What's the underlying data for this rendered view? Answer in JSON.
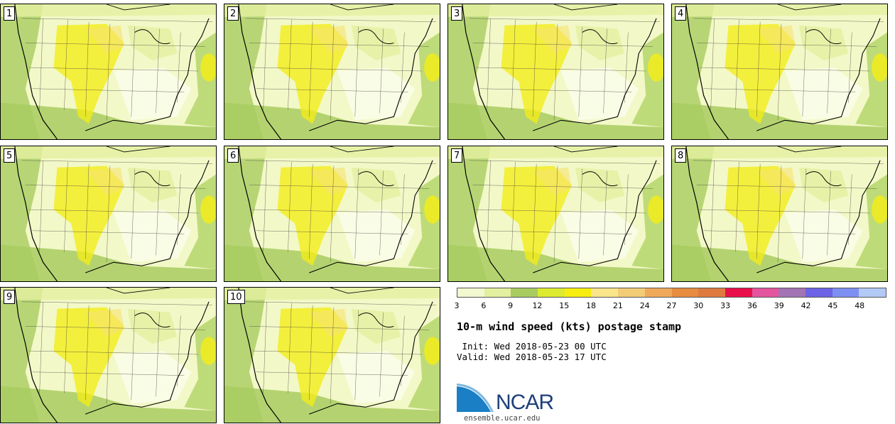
{
  "members": [
    "1",
    "2",
    "3",
    "4",
    "5",
    "6",
    "7",
    "8",
    "9",
    "10"
  ],
  "colors": {
    "land_light": "#f3f8c8",
    "green": "#a8cc60",
    "light_yellow": "#e3f0a0",
    "yellow": "#f2ec1a",
    "orange_light": "#f7e270",
    "ocean_green": "#b8d770",
    "border": "#000000",
    "state_line": "#333333"
  },
  "colorbar": {
    "colors": [
      "#f2f8cf",
      "#e3f0a0",
      "#a8cc60",
      "#dcea30",
      "#f7ee10",
      "#f9e58a",
      "#f3cc76",
      "#f0a85a",
      "#e88c40",
      "#de7a3f",
      "#e8104a",
      "#e3559e",
      "#a274b4",
      "#6c63e6",
      "#7e8ff2",
      "#b3caf7"
    ],
    "ticks": [
      "3",
      "6",
      "9",
      "12",
      "15",
      "18",
      "21",
      "24",
      "27",
      "30",
      "33",
      "36",
      "39",
      "42",
      "45",
      "48"
    ]
  },
  "title": "10-m wind speed (kts) postage stamp",
  "init": " Init: Wed 2018-05-23 00 UTC",
  "valid": "Valid: Wed 2018-05-23 17 UTC",
  "logo": {
    "text": "NCAR",
    "url": "ensemble.ucar.edu"
  }
}
